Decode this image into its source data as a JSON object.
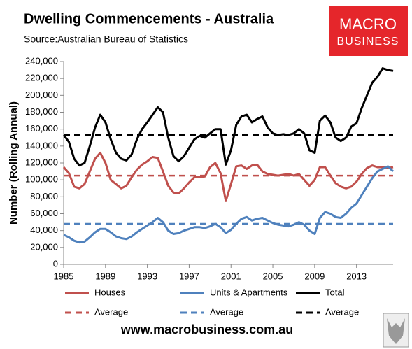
{
  "chart_data": {
    "type": "line",
    "title": "Dwelling Commencements - Australia",
    "subtitle": "Source:Australian Bureau of Statistics",
    "y_label": "Number (Rolling Annual)",
    "x": [
      1985,
      1985.5,
      1986,
      1986.5,
      1987,
      1987.5,
      1988,
      1988.5,
      1989,
      1989.5,
      1990,
      1990.5,
      1991,
      1991.5,
      1992,
      1992.5,
      1993,
      1993.5,
      1994,
      1994.5,
      1995,
      1995.5,
      1996,
      1996.5,
      1997,
      1997.5,
      1998,
      1998.5,
      1999,
      1999.5,
      2000,
      2000.5,
      2001,
      2001.5,
      2002,
      2002.5,
      2003,
      2003.5,
      2004,
      2004.5,
      2005,
      2005.5,
      2006,
      2006.5,
      2007,
      2007.5,
      2008,
      2008.5,
      2009,
      2009.5,
      2010,
      2010.5,
      2011,
      2011.5,
      2012,
      2012.5,
      2013,
      2013.5,
      2014,
      2014.5,
      2015,
      2015.5,
      2016,
      2016.5
    ],
    "series": [
      {
        "name": "Houses",
        "color": "#c0504d",
        "values": [
          115000,
          108000,
          92000,
          90000,
          95000,
          110000,
          125000,
          132000,
          120000,
          100000,
          95000,
          90000,
          93000,
          103000,
          112000,
          118000,
          122000,
          127000,
          126000,
          110000,
          93000,
          85000,
          84000,
          90000,
          97000,
          103000,
          103000,
          104000,
          115000,
          120000,
          108000,
          75000,
          95000,
          116000,
          117000,
          113000,
          117000,
          118000,
          110000,
          107000,
          106000,
          105000,
          106000,
          107000,
          105000,
          107000,
          100000,
          93000,
          100000,
          115000,
          115000,
          105000,
          96000,
          92000,
          90000,
          92000,
          98000,
          107000,
          114000,
          117000,
          115000,
          115000,
          114000,
          115000
        ]
      },
      {
        "name": "Units & Apartments",
        "color": "#4f81bd",
        "values": [
          35000,
          32000,
          28000,
          26000,
          27000,
          32000,
          38000,
          42000,
          42000,
          38000,
          33000,
          31000,
          30000,
          33000,
          38000,
          42000,
          46000,
          50000,
          55000,
          50000,
          40000,
          36000,
          37000,
          40000,
          42000,
          44000,
          44000,
          43000,
          45000,
          48000,
          44000,
          37000,
          41000,
          48000,
          54000,
          56000,
          52000,
          54000,
          55000,
          52000,
          49000,
          47000,
          46000,
          45000,
          47000,
          50000,
          47000,
          40000,
          36000,
          55000,
          62000,
          60000,
          56000,
          55000,
          60000,
          67000,
          72000,
          82000,
          92000,
          102000,
          110000,
          113000,
          116000,
          110000
        ]
      },
      {
        "name": "Total",
        "color": "#000000",
        "values": [
          153000,
          145000,
          125000,
          117000,
          120000,
          140000,
          162000,
          177000,
          168000,
          148000,
          132000,
          125000,
          123000,
          130000,
          148000,
          160000,
          168000,
          177000,
          186000,
          180000,
          150000,
          128000,
          122000,
          128000,
          138000,
          148000,
          152000,
          150000,
          155000,
          160000,
          160000,
          118000,
          135000,
          165000,
          175000,
          177000,
          168000,
          172000,
          175000,
          162000,
          155000,
          153000,
          154000,
          153000,
          155000,
          160000,
          155000,
          135000,
          132000,
          170000,
          176000,
          168000,
          150000,
          146000,
          150000,
          163000,
          167000,
          185000,
          200000,
          215000,
          222000,
          232000,
          230000,
          229000
        ]
      }
    ],
    "averages": [
      {
        "name": "Average",
        "color": "#c0504d",
        "value": 105000
      },
      {
        "name": "Average",
        "color": "#4f81bd",
        "value": 48000
      },
      {
        "name": "Average",
        "color": "#000000",
        "value": 153000
      }
    ],
    "xlim": [
      1985,
      2016.5
    ],
    "xticks": [
      1985,
      1989,
      1993,
      1997,
      2001,
      2005,
      2009,
      2013
    ],
    "ylim": [
      0,
      240000
    ],
    "yticks": [
      0,
      {
        "value": 20000,
        "label": "20,000"
      },
      {
        "value": 40000,
        "label": "40,000"
      },
      {
        "value": 60000,
        "label": "60,000"
      },
      {
        "value": 80000,
        "label": "80,000"
      },
      {
        "value": 100000,
        "label": "100,000"
      },
      {
        "value": 120000,
        "label": "120,000"
      },
      {
        "value": 140000,
        "label": "140,000"
      },
      {
        "value": 160000,
        "label": "160,000"
      },
      {
        "value": 180000,
        "label": "180,000"
      },
      {
        "value": 200000,
        "label": "200,000"
      },
      {
        "value": 220000,
        "label": "220,000"
      },
      {
        "value": 240000,
        "label": "240,000"
      }
    ],
    "grid": false
  },
  "logo": [
    "MACRO",
    "BUSINESS"
  ],
  "footer": "www.macrobusiness.com.au"
}
